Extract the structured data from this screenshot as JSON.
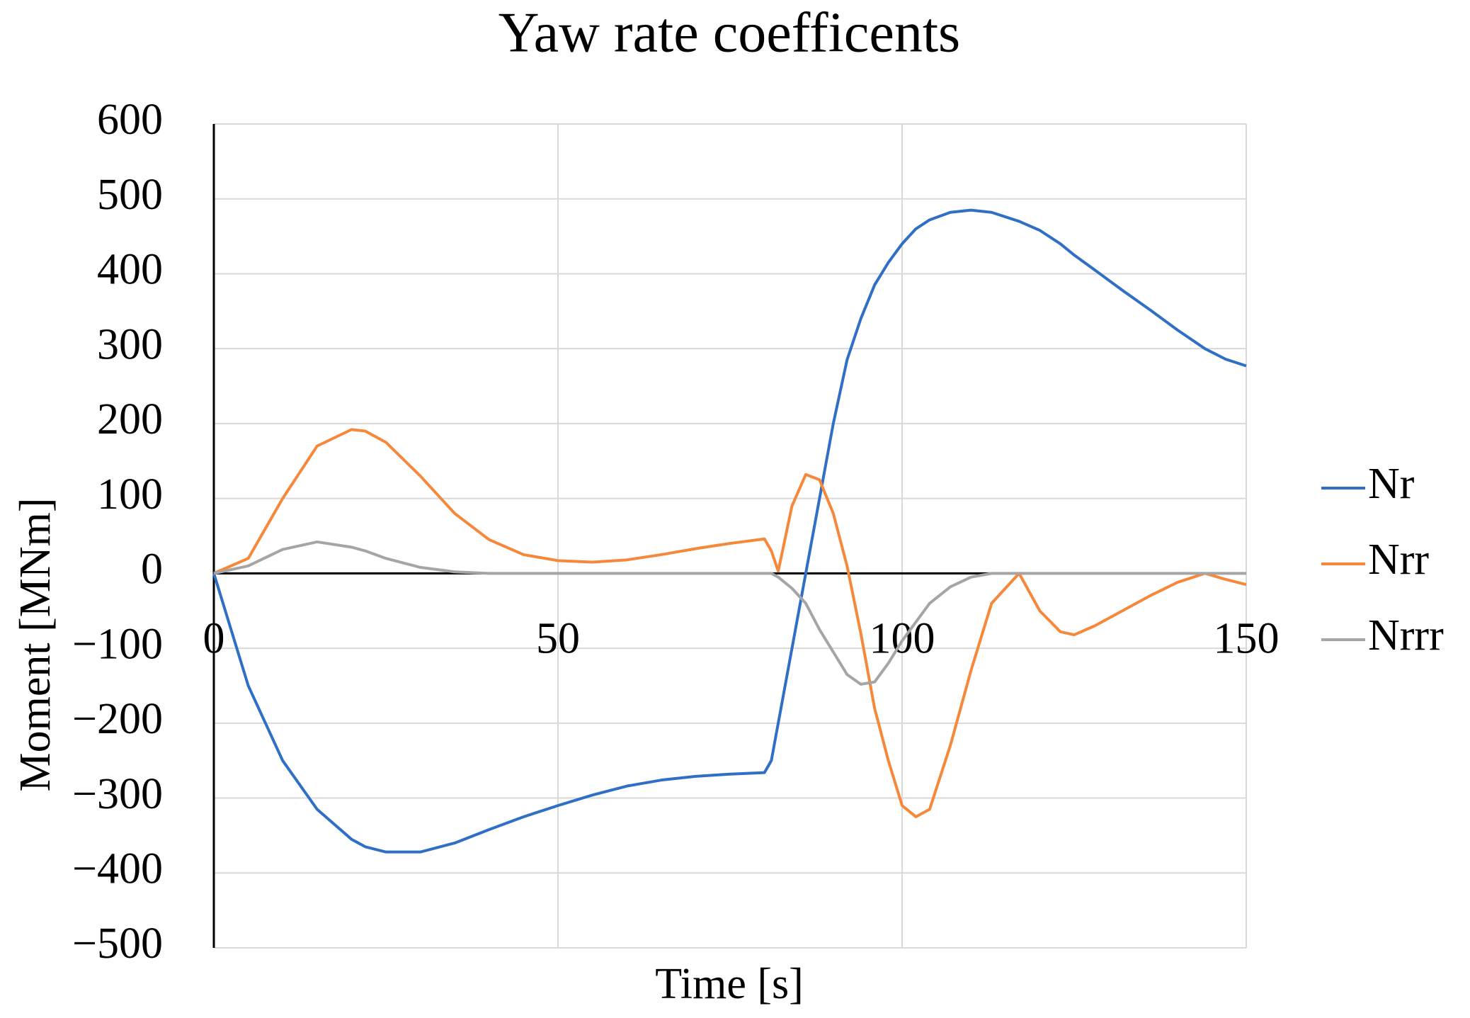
{
  "chart_data": {
    "type": "line",
    "title": "Yaw rate coefficents",
    "x_label": "Time [s]",
    "y_label": "Moment  [MNm]",
    "x": [
      0,
      5,
      10,
      15,
      20,
      22,
      25,
      30,
      35,
      40,
      45,
      50,
      55,
      60,
      65,
      70,
      75,
      80,
      81,
      82,
      84,
      86,
      88,
      90,
      92,
      94,
      96,
      98,
      100,
      102,
      104,
      107,
      110,
      113,
      117,
      120,
      123,
      125,
      128,
      132,
      136,
      140,
      144,
      147,
      150
    ],
    "series": [
      {
        "name": "Nr",
        "color": "#2f6fc6",
        "values": [
          0,
          -150,
          -250,
          -315,
          -355,
          -365,
          -372,
          -372,
          -360,
          -342,
          -325,
          -310,
          -296,
          -284,
          -276,
          -271,
          -268,
          -266,
          -250,
          -200,
          -100,
          0,
          100,
          200,
          285,
          340,
          385,
          415,
          440,
          460,
          472,
          482,
          485,
          482,
          470,
          458,
          440,
          425,
          405,
          378,
          352,
          325,
          300,
          286,
          277
        ]
      },
      {
        "name": "Nrr",
        "color": "#f5883a",
        "values": [
          0,
          20,
          100,
          170,
          192,
          190,
          175,
          130,
          80,
          45,
          25,
          17,
          15,
          18,
          25,
          33,
          40,
          46,
          30,
          3,
          90,
          132,
          125,
          80,
          10,
          -80,
          -180,
          -250,
          -310,
          -325,
          -315,
          -230,
          -130,
          -40,
          0,
          -50,
          -78,
          -82,
          -70,
          -50,
          -30,
          -12,
          0,
          -8,
          -15
        ]
      },
      {
        "name": "Nrrr",
        "color": "#a5a5a5",
        "values": [
          0,
          10,
          32,
          42,
          35,
          30,
          20,
          8,
          2,
          0,
          0,
          0,
          0,
          0,
          0,
          0,
          0,
          0,
          0,
          -5,
          -20,
          -40,
          -75,
          -105,
          -135,
          -148,
          -145,
          -120,
          -90,
          -65,
          -40,
          -18,
          -5,
          0,
          0,
          0,
          0,
          0,
          0,
          0,
          0,
          0,
          0,
          0,
          0
        ]
      }
    ],
    "xlim": [
      0,
      150
    ],
    "xticks": [
      0,
      50,
      100,
      150
    ],
    "ylim": [
      -500,
      600
    ],
    "yticks": [
      {
        "value": -500,
        "label": "−500"
      },
      {
        "value": -400,
        "label": "−400"
      },
      {
        "value": -300,
        "label": "−300"
      },
      {
        "value": -200,
        "label": "−200"
      },
      {
        "value": -100,
        "label": "−100"
      },
      0,
      100,
      200,
      300,
      400,
      500,
      600
    ],
    "grid": true,
    "legend": "right"
  }
}
